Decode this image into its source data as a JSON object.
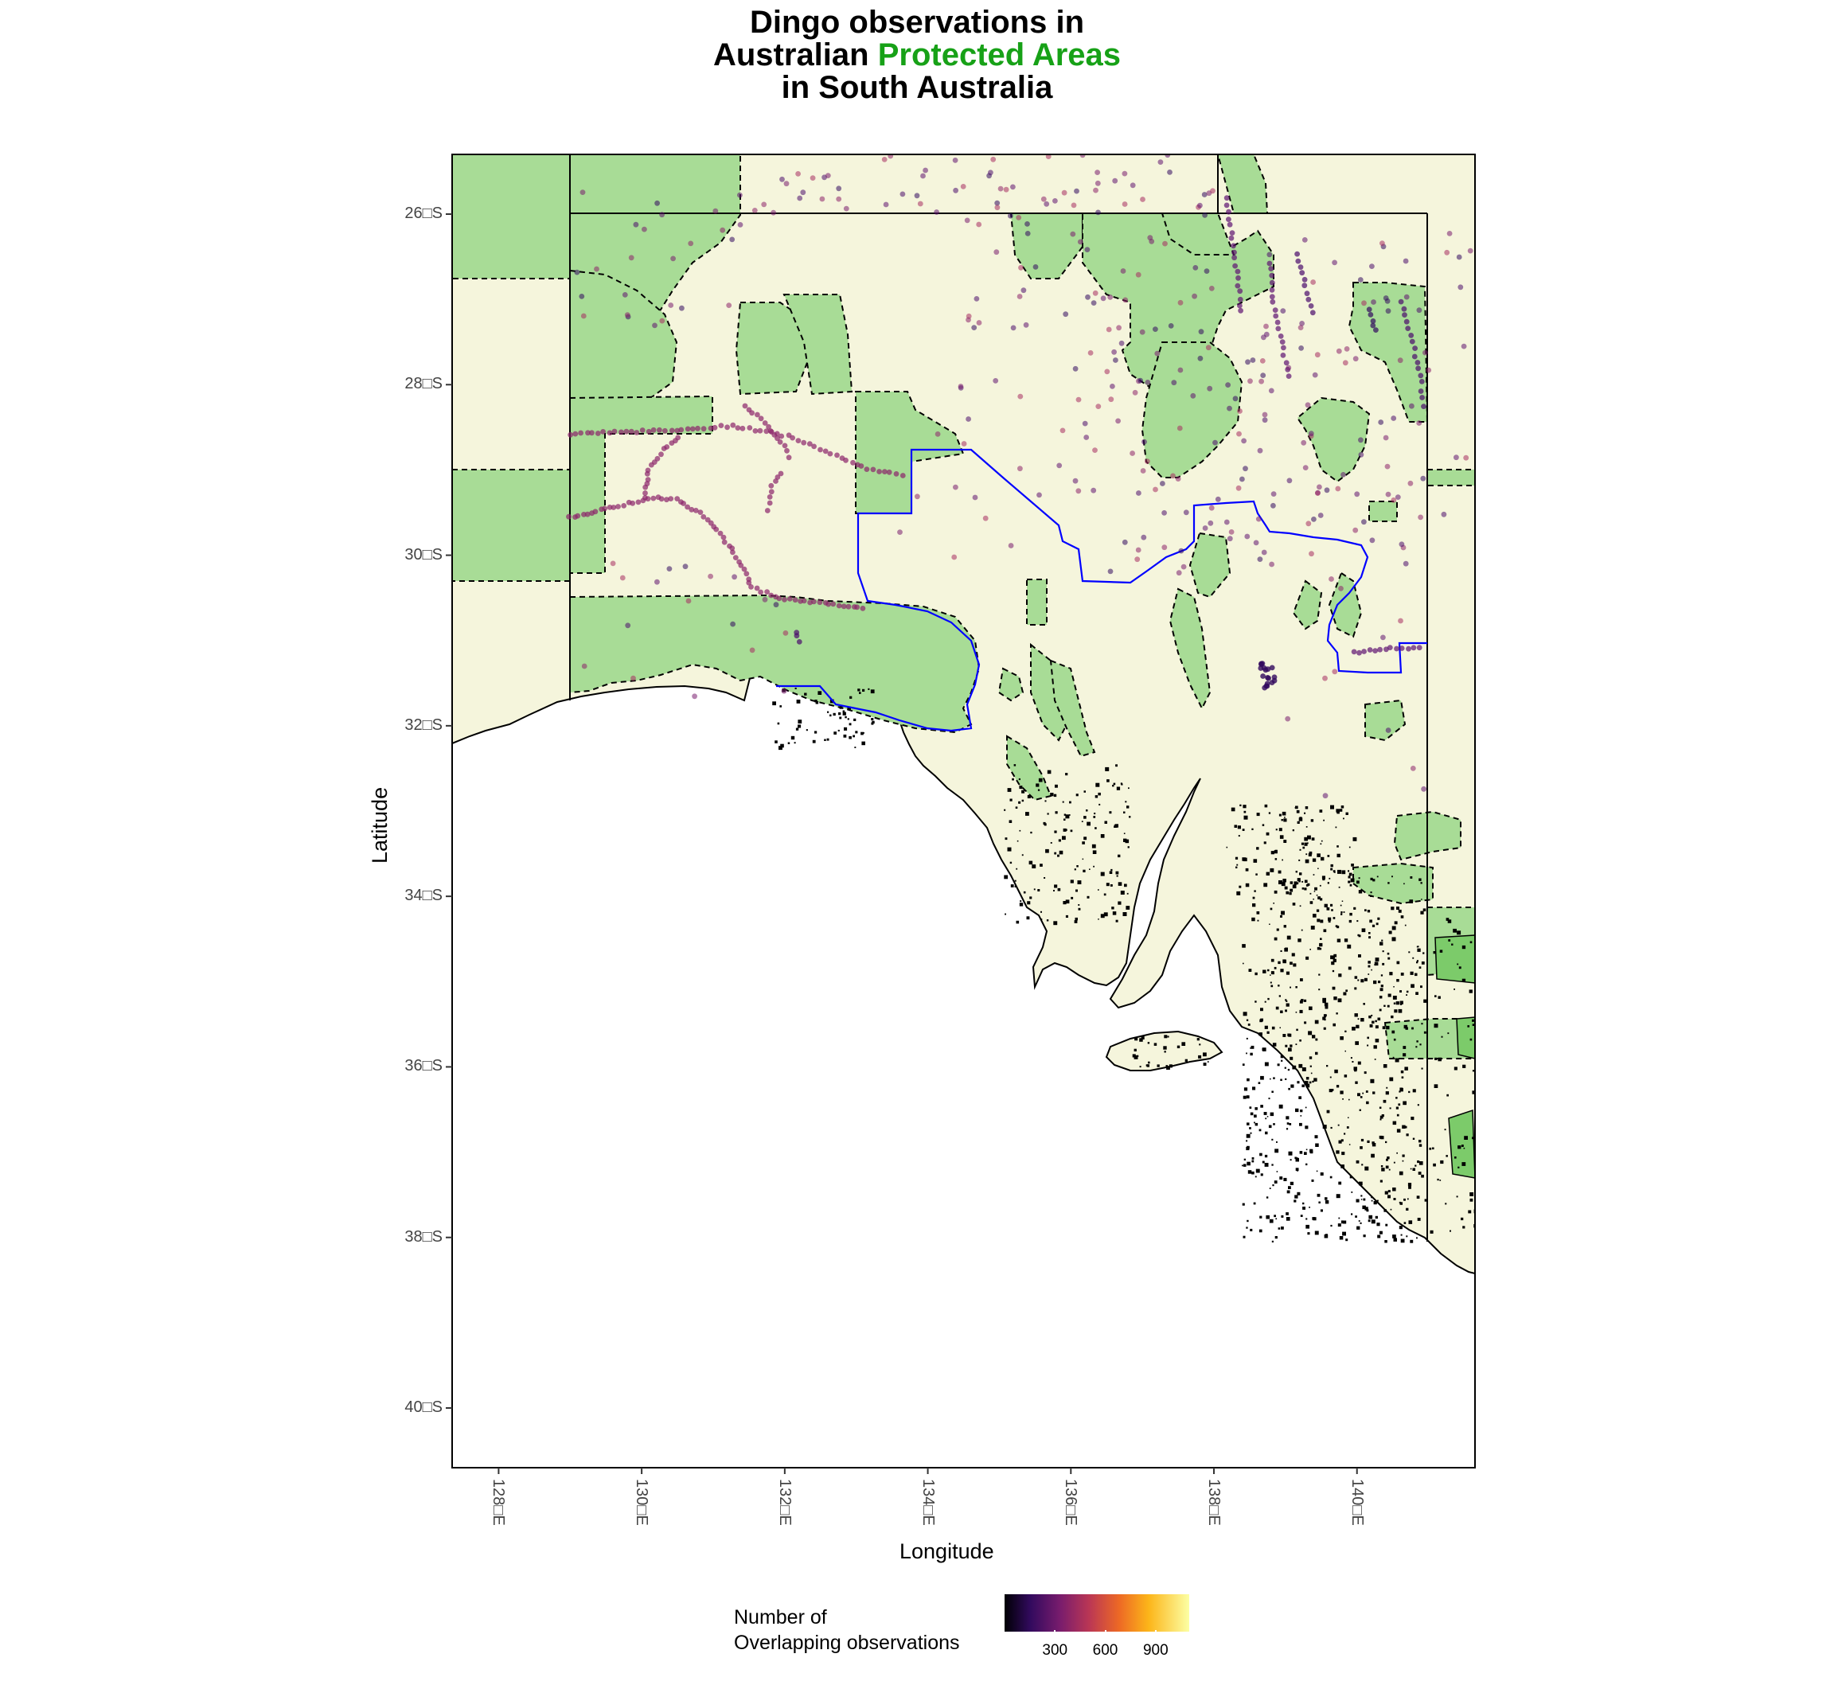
{
  "title": {
    "line1": "Dingo observations in",
    "line2_pre": "Australian ",
    "line2_accent": "Protected  Areas",
    "line3": "in South Australia"
  },
  "colors": {
    "title_accent": "#17A117",
    "land": "#F5F5DC",
    "protected_area": "#A8DC96",
    "protected_area_dark": "#7CCB6A",
    "boundary": "#000000",
    "dog_fence": "#0000FF",
    "observation_low": "#320A5E",
    "observation_high": "#FCFFA4"
  },
  "chart_data": {
    "type": "map",
    "title": "Dingo observations in Australian Protected Areas in South Australia",
    "xlabel": "Longitude",
    "ylabel": "Latitude",
    "x_ticks": [
      "128□E",
      "130□E",
      "132□E",
      "134□E",
      "136□E",
      "138□E",
      "140□E"
    ],
    "x_tick_values": [
      128,
      130,
      132,
      134,
      136,
      138,
      140
    ],
    "y_ticks": [
      "26□S",
      "28□S",
      "30□S",
      "32□S",
      "34□S",
      "36□S",
      "38□S",
      "40□S"
    ],
    "y_tick_values": [
      -26,
      -28,
      -30,
      -32,
      -34,
      -36,
      -38,
      -40
    ],
    "xlim": [
      127.35,
      141.65
    ],
    "ylim": [
      -40.7,
      -25.3
    ],
    "grid": false,
    "legend": {
      "title_line1": "Number of",
      "title_line2": "Overlapping observations",
      "placement": "bottom",
      "scale": "inferno",
      "tick_labels": [
        "300",
        "600",
        "900"
      ],
      "tick_values": [
        300,
        600,
        900
      ],
      "range": [
        0,
        1100
      ]
    }
  }
}
